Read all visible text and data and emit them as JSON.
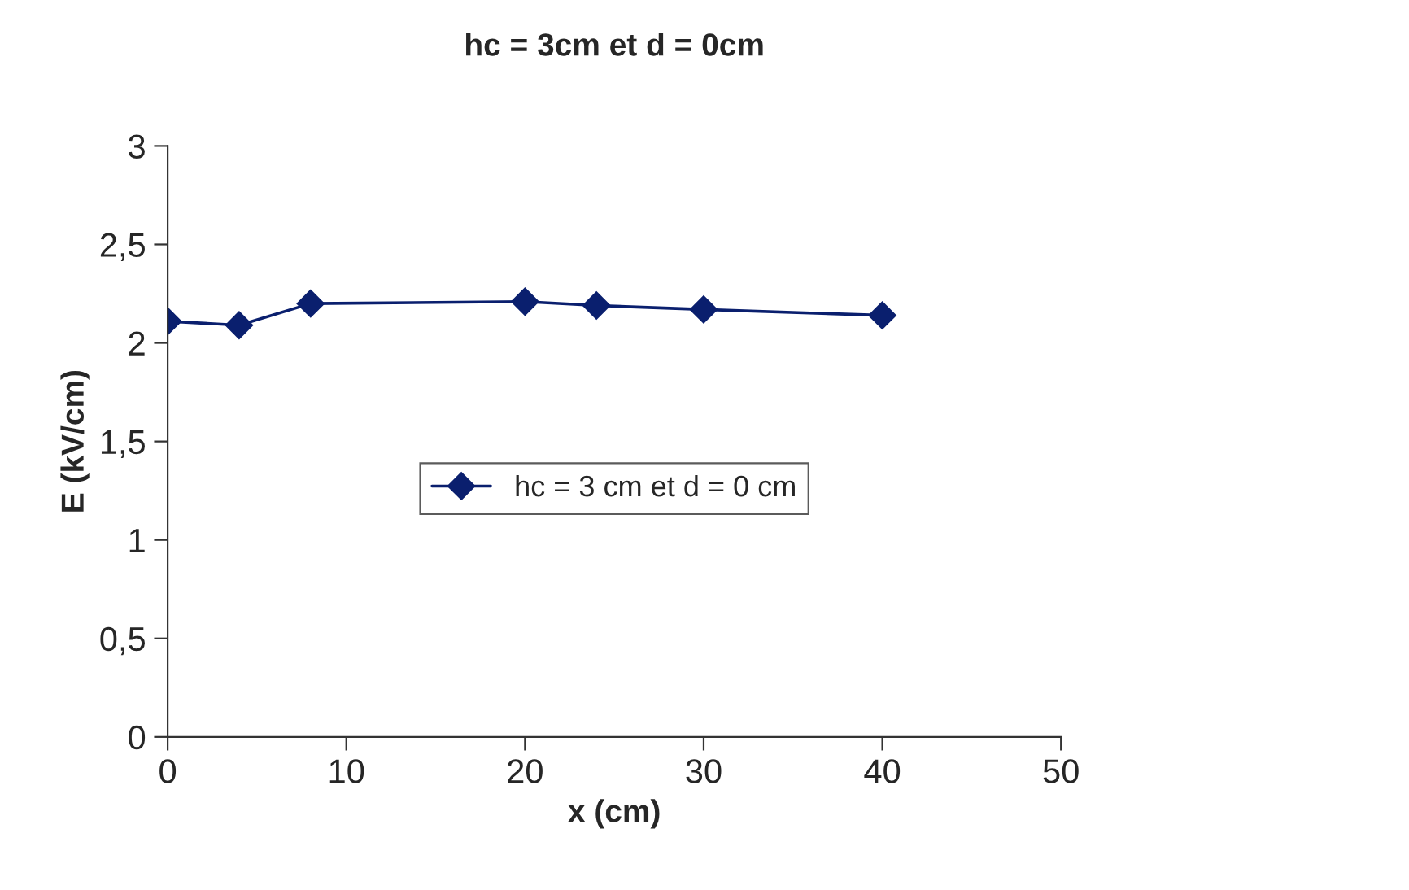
{
  "chart_data": {
    "type": "line",
    "title": "hc = 3cm et d = 0cm",
    "xlabel": "x (cm)",
    "ylabel": "E (kV/cm)",
    "x": [
      0,
      4,
      8,
      20,
      24,
      30,
      40
    ],
    "series": [
      {
        "name": "hc = 3 cm et d = 0 cm",
        "color": "#0a1f6e",
        "values": [
          2.11,
          2.09,
          2.2,
          2.21,
          2.19,
          2.17,
          2.14
        ]
      }
    ],
    "xlim": [
      0,
      50
    ],
    "xticks": [
      0,
      10,
      20,
      30,
      40,
      50
    ],
    "ylim": [
      0,
      3
    ],
    "yticks": [
      0,
      {
        "value": 0.5,
        "label": "0,5"
      },
      1,
      {
        "value": 1.5,
        "label": "1,5"
      },
      2,
      {
        "value": 2.5,
        "label": "2,5"
      },
      3
    ],
    "grid": false,
    "legend": "center",
    "marker": "diamond",
    "line_style": "solid"
  }
}
